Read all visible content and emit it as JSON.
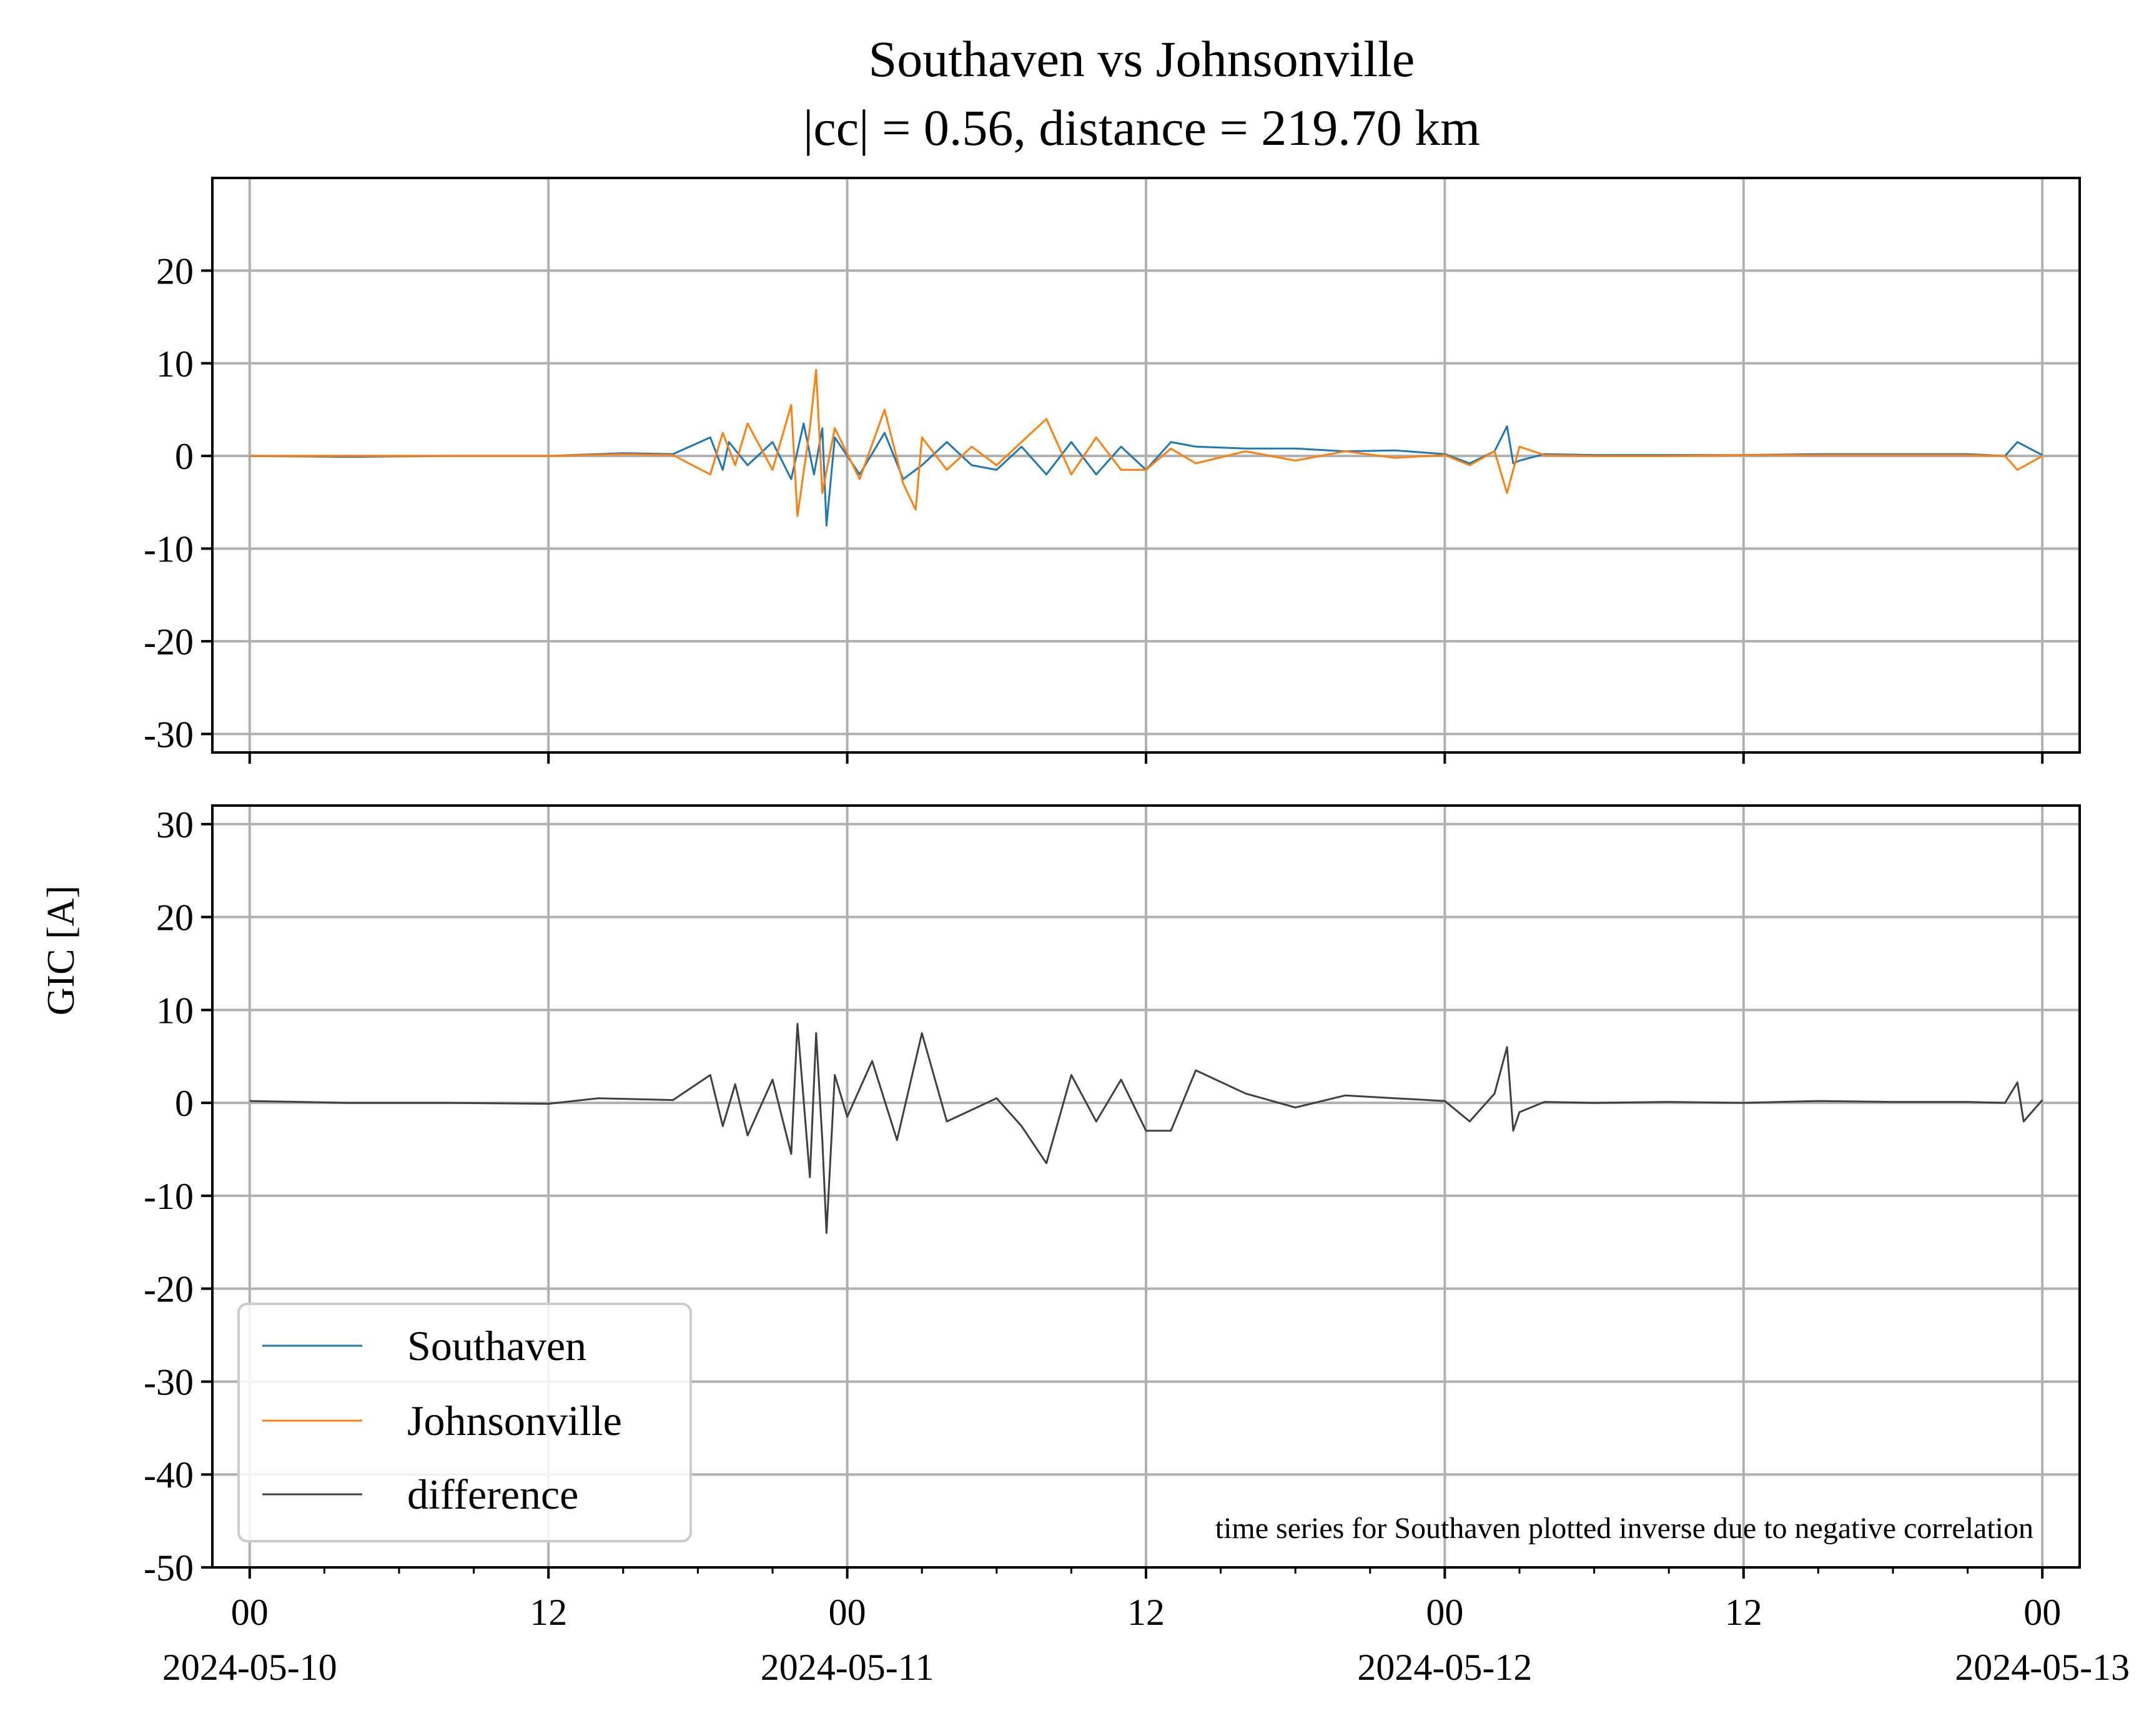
{
  "title": "Southaven vs Johnsonville",
  "subtitle": "|cc| = 0.56, distance = 219.70 km",
  "ylabel": "GIC [A]",
  "annotation": "time series for Southaven plotted inverse due to negative correlation",
  "legend": {
    "placement": "lower-left",
    "entries": [
      "Southaven",
      "Johnsonville",
      "difference"
    ]
  },
  "colors": {
    "southaven": "#1f77b4",
    "johnsonville": "#ff7f0e",
    "difference": "#404040",
    "grid": "#b0b0b0"
  },
  "chart_data": [
    {
      "type": "line",
      "panel": "top",
      "grid": true,
      "x_type": "datetime",
      "xlim": [
        "2024-05-09T22:30",
        "2024-05-13T01:30"
      ],
      "ylim": [
        -32,
        30
      ],
      "yticks": [
        20,
        10,
        0,
        -10,
        -20,
        -30
      ],
      "x_ticks": [
        {
          "value": "2024-05-10T00:00",
          "label": "00",
          "date": "2024-05-10"
        },
        {
          "value": "2024-05-10T12:00",
          "label": "12",
          "date": ""
        },
        {
          "value": "2024-05-11T00:00",
          "label": "00",
          "date": "2024-05-11"
        },
        {
          "value": "2024-05-11T12:00",
          "label": "12",
          "date": ""
        },
        {
          "value": "2024-05-12T00:00",
          "label": "00",
          "date": "2024-05-12"
        },
        {
          "value": "2024-05-12T12:00",
          "label": "12",
          "date": ""
        },
        {
          "value": "2024-05-13T00:00",
          "label": "00",
          "date": "2024-05-13"
        }
      ],
      "series": [
        {
          "name": "Southaven",
          "x": [
            "2024-05-10T00:00",
            "2024-05-10T04:00",
            "2024-05-10T08:00",
            "2024-05-10T12:00",
            "2024-05-10T15:00",
            "2024-05-10T17:00",
            "2024-05-10T18:30",
            "2024-05-10T19:00",
            "2024-05-10T19:15",
            "2024-05-10T20:00",
            "2024-05-10T21:00",
            "2024-05-10T21:45",
            "2024-05-10T22:15",
            "2024-05-10T22:40",
            "2024-05-10T23:00",
            "2024-05-10T23:10",
            "2024-05-10T23:30",
            "2024-05-11T00:30",
            "2024-05-11T01:30",
            "2024-05-11T02:15",
            "2024-05-11T03:00",
            "2024-05-11T04:00",
            "2024-05-11T05:00",
            "2024-05-11T06:00",
            "2024-05-11T07:00",
            "2024-05-11T08:00",
            "2024-05-11T09:00",
            "2024-05-11T10:00",
            "2024-05-11T11:00",
            "2024-05-11T12:00",
            "2024-05-11T13:00",
            "2024-05-11T14:00",
            "2024-05-11T16:00",
            "2024-05-11T18:00",
            "2024-05-11T20:00",
            "2024-05-11T22:00",
            "2024-05-12T00:00",
            "2024-05-12T01:00",
            "2024-05-12T02:00",
            "2024-05-12T02:30",
            "2024-05-12T02:45",
            "2024-05-12T03:00",
            "2024-05-12T04:00",
            "2024-05-12T06:00",
            "2024-05-12T09:00",
            "2024-05-12T12:00",
            "2024-05-12T15:00",
            "2024-05-12T18:00",
            "2024-05-12T21:00",
            "2024-05-12T22:30",
            "2024-05-12T23:00",
            "2024-05-13T00:00"
          ],
          "values": [
            0.0,
            -0.1,
            0.0,
            0.0,
            0.3,
            0.2,
            2.0,
            -1.5,
            1.5,
            -1.0,
            1.5,
            -2.5,
            3.5,
            -2.0,
            3.0,
            -7.5,
            2.0,
            -2.0,
            2.5,
            -2.5,
            -1.0,
            1.5,
            -1.0,
            -1.5,
            1.0,
            -2.0,
            1.5,
            -2.0,
            1.0,
            -1.5,
            1.5,
            1.0,
            0.8,
            0.8,
            0.5,
            0.6,
            0.2,
            -0.8,
            0.5,
            3.2,
            -0.8,
            -0.5,
            0.2,
            0.1,
            0.1,
            0.1,
            0.2,
            0.2,
            0.2,
            0.0,
            1.5,
            0.1
          ]
        },
        {
          "name": "Johnsonville",
          "x": [
            "2024-05-10T00:00",
            "2024-05-10T04:00",
            "2024-05-10T08:00",
            "2024-05-10T12:00",
            "2024-05-10T15:00",
            "2024-05-10T17:00",
            "2024-05-10T18:30",
            "2024-05-10T19:00",
            "2024-05-10T19:30",
            "2024-05-10T20:00",
            "2024-05-10T21:00",
            "2024-05-10T21:45",
            "2024-05-10T22:00",
            "2024-05-10T22:30",
            "2024-05-10T22:45",
            "2024-05-10T23:00",
            "2024-05-10T23:30",
            "2024-05-11T00:30",
            "2024-05-11T01:30",
            "2024-05-11T02:15",
            "2024-05-11T02:45",
            "2024-05-11T03:00",
            "2024-05-11T04:00",
            "2024-05-11T05:00",
            "2024-05-11T06:00",
            "2024-05-11T07:00",
            "2024-05-11T08:00",
            "2024-05-11T09:00",
            "2024-05-11T10:00",
            "2024-05-11T11:00",
            "2024-05-11T12:00",
            "2024-05-11T13:00",
            "2024-05-11T14:00",
            "2024-05-11T16:00",
            "2024-05-11T18:00",
            "2024-05-11T20:00",
            "2024-05-11T22:00",
            "2024-05-12T00:00",
            "2024-05-12T01:00",
            "2024-05-12T02:00",
            "2024-05-12T02:30",
            "2024-05-12T03:00",
            "2024-05-12T04:00",
            "2024-05-12T06:00",
            "2024-05-12T09:00",
            "2024-05-12T12:00",
            "2024-05-12T15:00",
            "2024-05-12T18:00",
            "2024-05-12T21:00",
            "2024-05-12T22:30",
            "2024-05-12T23:00",
            "2024-05-13T00:00"
          ],
          "values": [
            0.0,
            0.0,
            0.0,
            0.0,
            0.2,
            0.1,
            -2.0,
            2.5,
            -1.0,
            3.5,
            -1.5,
            5.5,
            -6.5,
            3.0,
            9.3,
            -4.0,
            3.0,
            -2.5,
            5.0,
            -3.0,
            -5.8,
            2.0,
            -1.5,
            1.0,
            -1.0,
            1.5,
            4.0,
            -2.0,
            2.0,
            -1.5,
            -1.5,
            0.8,
            -0.8,
            0.5,
            -0.5,
            0.5,
            -0.2,
            0.1,
            -1.0,
            0.5,
            -4.0,
            1.0,
            0.1,
            0.0,
            0.0,
            0.1,
            0.1,
            0.1,
            0.1,
            0.0,
            -1.5,
            0.0
          ]
        }
      ]
    },
    {
      "type": "line",
      "panel": "bottom",
      "grid": true,
      "x_type": "datetime",
      "xlim": [
        "2024-05-09T22:30",
        "2024-05-13T01:30"
      ],
      "ylim": [
        -50,
        32
      ],
      "yticks": [
        30,
        20,
        10,
        0,
        -10,
        -20,
        -30,
        -40,
        -50
      ],
      "series": [
        {
          "name": "difference",
          "x": [
            "2024-05-10T00:00",
            "2024-05-10T04:00",
            "2024-05-10T08:00",
            "2024-05-10T12:00",
            "2024-05-10T14:00",
            "2024-05-10T17:00",
            "2024-05-10T18:30",
            "2024-05-10T19:00",
            "2024-05-10T19:30",
            "2024-05-10T20:00",
            "2024-05-10T21:00",
            "2024-05-10T21:45",
            "2024-05-10T22:00",
            "2024-05-10T22:30",
            "2024-05-10T22:45",
            "2024-05-10T23:00",
            "2024-05-10T23:10",
            "2024-05-10T23:30",
            "2024-05-11T00:00",
            "2024-05-11T01:00",
            "2024-05-11T02:00",
            "2024-05-11T03:00",
            "2024-05-11T04:00",
            "2024-05-11T06:00",
            "2024-05-11T07:00",
            "2024-05-11T08:00",
            "2024-05-11T09:00",
            "2024-05-11T10:00",
            "2024-05-11T11:00",
            "2024-05-11T12:00",
            "2024-05-11T13:00",
            "2024-05-11T14:00",
            "2024-05-11T16:00",
            "2024-05-11T18:00",
            "2024-05-11T20:00",
            "2024-05-11T22:00",
            "2024-05-12T00:00",
            "2024-05-12T01:00",
            "2024-05-12T02:00",
            "2024-05-12T02:30",
            "2024-05-12T02:45",
            "2024-05-12T03:00",
            "2024-05-12T04:00",
            "2024-05-12T06:00",
            "2024-05-12T09:00",
            "2024-05-12T12:00",
            "2024-05-12T15:00",
            "2024-05-12T18:00",
            "2024-05-12T21:00",
            "2024-05-12T22:30",
            "2024-05-12T23:00",
            "2024-05-12T23:15",
            "2024-05-13T00:00"
          ],
          "values": [
            0.2,
            0.0,
            0.0,
            -0.1,
            0.5,
            0.3,
            3.0,
            -2.5,
            2.0,
            -3.5,
            2.5,
            -5.5,
            8.5,
            -8.0,
            7.5,
            -4.0,
            -14.0,
            3.0,
            -1.5,
            4.5,
            -4.0,
            7.5,
            -2.0,
            0.5,
            -2.5,
            -6.5,
            3.0,
            -2.0,
            2.5,
            -3.0,
            -3.0,
            3.5,
            1.0,
            -0.5,
            0.8,
            0.5,
            0.2,
            -2.0,
            1.0,
            6.0,
            -3.0,
            -1.0,
            0.1,
            0.0,
            0.1,
            0.0,
            0.2,
            0.1,
            0.1,
            0.0,
            2.2,
            -2.0,
            0.3
          ]
        }
      ]
    }
  ]
}
